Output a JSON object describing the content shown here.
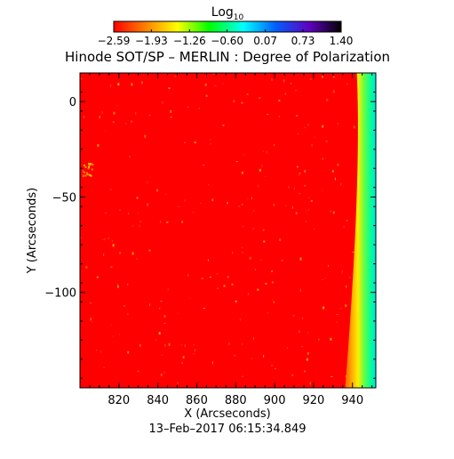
{
  "chart_data": {
    "type": "heatmap",
    "title": "Hinode SOT/SP – MERLIN : Degree of Polarization",
    "xlabel": "X (Arcseconds)",
    "ylabel": "Y (Arcseconds)",
    "footer": "13–Feb–2017 06:15:34.849",
    "xlim": [
      800,
      952
    ],
    "ylim": [
      -150,
      15
    ],
    "x_ticks": [
      {
        "value": 820,
        "label": "820"
      },
      {
        "value": 840,
        "label": "840"
      },
      {
        "value": 860,
        "label": "860"
      },
      {
        "value": 880,
        "label": "880"
      },
      {
        "value": 900,
        "label": "900"
      },
      {
        "value": 920,
        "label": "920"
      },
      {
        "value": 940,
        "label": "940"
      }
    ],
    "y_ticks": [
      {
        "value": 0,
        "label": "0"
      },
      {
        "value": -50,
        "label": "−50"
      },
      {
        "value": -100,
        "label": "−100"
      }
    ],
    "colorbar": {
      "title_base": "Log",
      "title_sub": "10",
      "range": [
        -2.59,
        1.4
      ],
      "ticks": [
        {
          "value": -2.59,
          "label": "−2.59"
        },
        {
          "value": -1.93,
          "label": "−1.93"
        },
        {
          "value": -1.26,
          "label": "−1.26"
        },
        {
          "value": -0.6,
          "label": "−0.60"
        },
        {
          "value": 0.07,
          "label": "0.07"
        },
        {
          "value": 0.73,
          "label": "0.73"
        },
        {
          "value": 1.4,
          "label": "1.40"
        }
      ],
      "colors": [
        "#ff0000",
        "#ff8000",
        "#ffff00",
        "#00ff00",
        "#00ffff",
        "#0060ff",
        "#6000c0",
        "#000000"
      ]
    },
    "field": {
      "background_value": -2.59,
      "background_color": "#ff0000",
      "limb": {
        "x_top": 944,
        "x_bottom": 938,
        "band_colors": [
          "#ff8c00",
          "#ffee00",
          "#55ff55",
          "#00e0ff"
        ]
      }
    },
    "grid": false,
    "legend": "none"
  }
}
